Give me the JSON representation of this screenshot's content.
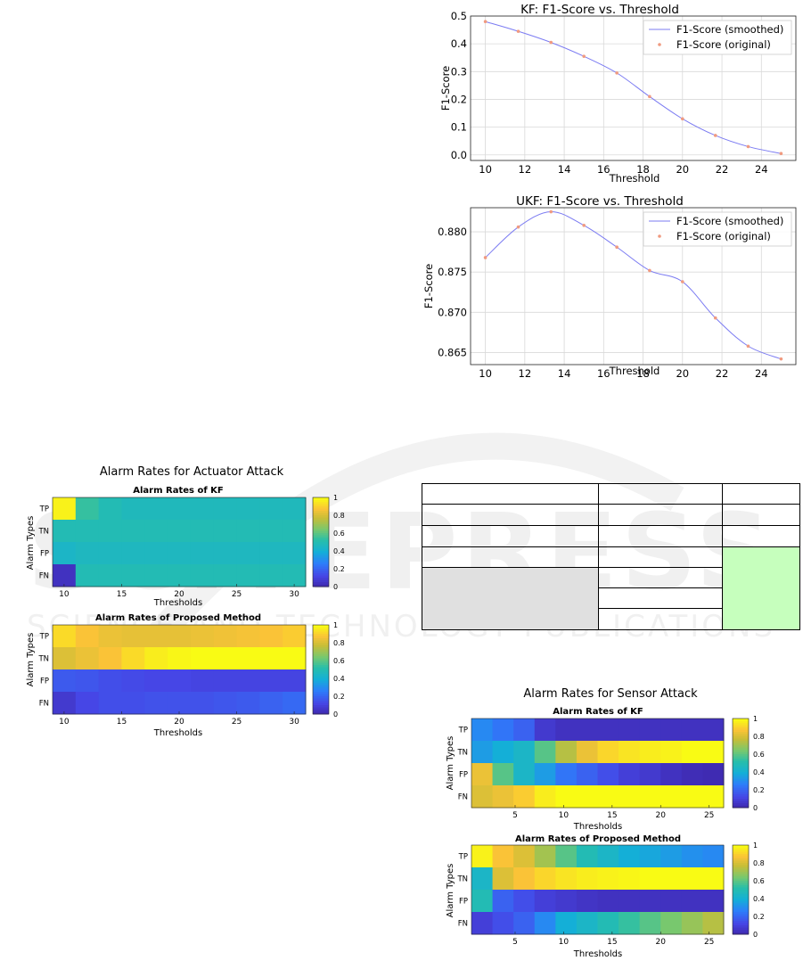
{
  "watermark": {
    "big": "SCITEPRESS",
    "small": "SCIENCE AND TECHNOLOGY PUBLICATIONS"
  },
  "kf_f1": {
    "title": "KF: F1-Score vs. Threshold",
    "xlabel": "Threshold",
    "ylabel": "F1-Score",
    "legend": [
      "F1-Score (smoothed)",
      "F1-Score (original)"
    ],
    "xticks": [
      "10",
      "12",
      "14",
      "16",
      "18",
      "20",
      "22",
      "24"
    ],
    "yticks": [
      "0.0",
      "0.1",
      "0.2",
      "0.3",
      "0.4",
      "0.5"
    ]
  },
  "ukf_f1": {
    "title": "UKF: F1-Score vs. Threshold",
    "xlabel": "Threshold",
    "ylabel": "F1-Score",
    "legend": [
      "F1-Score (smoothed)",
      "F1-Score (original)"
    ],
    "xticks": [
      "10",
      "12",
      "14",
      "16",
      "18",
      "20",
      "22",
      "24"
    ],
    "yticks": [
      "0.865",
      "0.870",
      "0.875",
      "0.880"
    ]
  },
  "actuator": {
    "suptitle": "Alarm Rates for Actuator Attack",
    "top_title": "Alarm Rates of KF",
    "bottom_title": "Alarm Rates of Proposed Method",
    "ylabel": "Alarm Types",
    "xlabel": "Thresholds",
    "rows": [
      "TP",
      "TN",
      "FP",
      "FN"
    ],
    "xticks": [
      "10",
      "15",
      "20",
      "25",
      "30"
    ],
    "cbar": [
      "1",
      "0.8",
      "0.6",
      "0.4",
      "0.2",
      "0"
    ]
  },
  "sensor": {
    "suptitle": "Alarm Rates for Sensor Attack",
    "top_title": "Alarm Rates of KF",
    "bottom_title": "Alarm Rates of Proposed Method",
    "ylabel": "Alarm Types",
    "xlabel": "Thresholds",
    "rows": [
      "TP",
      "TN",
      "FP",
      "FN"
    ],
    "xticks": [
      "5",
      "10",
      "15",
      "20",
      "25"
    ],
    "cbar": [
      "1",
      "0.8",
      "0.6",
      "0.4",
      "0.2",
      "0"
    ]
  },
  "chart_data": [
    {
      "type": "line",
      "title": "KF: F1-Score vs. Threshold",
      "xlabel": "Threshold",
      "ylabel": "F1-Score",
      "xlim": [
        9.25,
        25.75
      ],
      "ylim": [
        -0.02,
        0.5
      ],
      "x": [
        10,
        11.67,
        13.33,
        15,
        16.67,
        18.33,
        20,
        21.67,
        23.33,
        25
      ],
      "series": [
        {
          "name": "F1-Score (smoothed)",
          "color": "#7b7bf2",
          "values": [
            0.48,
            0.445,
            0.405,
            0.355,
            0.295,
            0.21,
            0.13,
            0.07,
            0.03,
            0.005
          ]
        },
        {
          "name": "F1-Score (original)",
          "color": "#f09a80",
          "values": [
            0.48,
            0.445,
            0.405,
            0.355,
            0.295,
            0.21,
            0.13,
            0.07,
            0.03,
            0.005
          ]
        }
      ],
      "grid": true,
      "legend": "top-right"
    },
    {
      "type": "line",
      "title": "UKF: F1-Score vs. Threshold",
      "xlabel": "Threshold",
      "ylabel": "F1-Score",
      "xlim": [
        9.25,
        25.75
      ],
      "ylim": [
        0.8635,
        0.883
      ],
      "x": [
        10,
        11.67,
        13.33,
        15,
        16.67,
        18.33,
        20,
        21.67,
        23.33,
        25
      ],
      "series": [
        {
          "name": "F1-Score (smoothed)",
          "color": "#7b7bf2",
          "values": [
            0.8768,
            0.8806,
            0.8825,
            0.8808,
            0.8781,
            0.8752,
            0.8738,
            0.8693,
            0.8658,
            0.8642
          ]
        },
        {
          "name": "F1-Score (original)",
          "color": "#f09a80",
          "values": [
            0.8768,
            0.8806,
            0.8825,
            0.8808,
            0.8781,
            0.8752,
            0.8738,
            0.8693,
            0.8658,
            0.8642
          ]
        }
      ],
      "grid": true,
      "legend": "top-right"
    },
    {
      "type": "heatmap",
      "title": "Alarm Rates of KF",
      "suptitle": "Alarm Rates for Actuator Attack",
      "rows": [
        "TP",
        "TN",
        "FP",
        "FN"
      ],
      "xlim": [
        9,
        31
      ],
      "values": [
        [
          0.98,
          0.55,
          0.5,
          0.48,
          0.48,
          0.48,
          0.48,
          0.48,
          0.48,
          0.48,
          0.48
        ],
        [
          0.5,
          0.5,
          0.5,
          0.5,
          0.5,
          0.5,
          0.5,
          0.5,
          0.5,
          0.5,
          0.5
        ],
        [
          0.45,
          0.47,
          0.47,
          0.47,
          0.47,
          0.47,
          0.47,
          0.47,
          0.47,
          0.47,
          0.47
        ],
        [
          0.05,
          0.5,
          0.5,
          0.5,
          0.5,
          0.5,
          0.5,
          0.5,
          0.5,
          0.5,
          0.5
        ]
      ],
      "colorbar": [
        0,
        1
      ]
    },
    {
      "type": "heatmap",
      "title": "Alarm Rates of Proposed Method",
      "suptitle": "Alarm Rates for Actuator Attack",
      "rows": [
        "TP",
        "TN",
        "FP",
        "FN"
      ],
      "xlim": [
        9,
        31
      ],
      "values": [
        [
          0.93,
          0.88,
          0.85,
          0.84,
          0.84,
          0.84,
          0.85,
          0.86,
          0.87,
          0.88,
          0.9
        ],
        [
          0.82,
          0.85,
          0.88,
          0.93,
          0.97,
          0.99,
          1,
          1,
          1,
          1,
          1
        ],
        [
          0.18,
          0.17,
          0.15,
          0.14,
          0.13,
          0.13,
          0.12,
          0.12,
          0.12,
          0.12,
          0.12
        ],
        [
          0.08,
          0.13,
          0.15,
          0.15,
          0.16,
          0.16,
          0.16,
          0.17,
          0.18,
          0.2,
          0.22
        ]
      ],
      "colorbar": [
        0,
        1
      ]
    },
    {
      "type": "heatmap",
      "title": "Alarm Rates of KF",
      "suptitle": "Alarm Rates for Sensor Attack",
      "rows": [
        "TP",
        "TN",
        "FP",
        "FN"
      ],
      "xlim": [
        0.5,
        26.5
      ],
      "values": [
        [
          0.3,
          0.25,
          0.2,
          0.08,
          0.05,
          0.05,
          0.05,
          0.05,
          0.05,
          0.05,
          0.05,
          0.05
        ],
        [
          0.35,
          0.4,
          0.45,
          0.6,
          0.75,
          0.85,
          0.92,
          0.95,
          0.97,
          0.98,
          1,
          1
        ],
        [
          0.85,
          0.6,
          0.45,
          0.35,
          0.25,
          0.2,
          0.15,
          0.1,
          0.08,
          0.05,
          0.03,
          0.02
        ],
        [
          0.82,
          0.85,
          0.9,
          0.97,
          1,
          1,
          1,
          1,
          1,
          1,
          1,
          1
        ]
      ],
      "colorbar": [
        0,
        1
      ]
    },
    {
      "type": "heatmap",
      "title": "Alarm Rates of Proposed Method",
      "suptitle": "Alarm Rates for Sensor Attack",
      "rows": [
        "TP",
        "TN",
        "FP",
        "FN"
      ],
      "xlim": [
        0.5,
        26.5
      ],
      "values": [
        [
          0.98,
          0.88,
          0.82,
          0.72,
          0.6,
          0.5,
          0.45,
          0.4,
          0.38,
          0.35,
          0.32,
          0.3
        ],
        [
          0.45,
          0.82,
          0.88,
          0.92,
          0.95,
          0.97,
          0.98,
          0.99,
          1,
          1,
          1,
          1
        ],
        [
          0.5,
          0.2,
          0.15,
          0.1,
          0.08,
          0.06,
          0.05,
          0.05,
          0.05,
          0.05,
          0.05,
          0.05
        ],
        [
          0.1,
          0.15,
          0.2,
          0.3,
          0.4,
          0.45,
          0.5,
          0.55,
          0.6,
          0.65,
          0.7,
          0.75
        ]
      ],
      "colorbar": [
        0,
        1
      ]
    }
  ]
}
